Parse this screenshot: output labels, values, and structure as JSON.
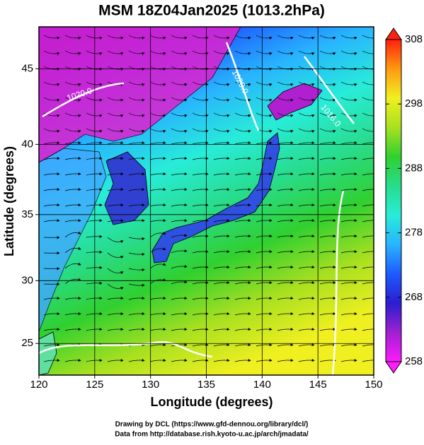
{
  "chart_data": {
    "type": "map",
    "title": "MSM 18Z04Jan2025 (1013.2hPa)",
    "x_label": "Longitude (degrees)",
    "y_label": "Latitude  (degrees)",
    "xlim": [
      120,
      150
    ],
    "xticks": [
      120,
      125,
      130,
      135,
      140,
      145,
      150
    ],
    "ylim": [
      22.4,
      47.6
    ],
    "yticks": [
      25,
      30,
      35,
      40,
      45
    ],
    "y_scale": "mercator",
    "grid": true,
    "contour_labels": [
      "1020.0",
      "1020.0",
      "1016.0"
    ],
    "colorbar": {
      "range": [
        258,
        308
      ],
      "ticks": [
        258,
        268,
        278,
        288,
        298,
        308
      ],
      "colors": [
        "#ff1aff",
        "#a020d0",
        "#2a1ed0",
        "#1e5aff",
        "#28b4ff",
        "#28ecd8",
        "#28dc8c",
        "#30d030",
        "#a8e020",
        "#f0f020",
        "#ff9a10",
        "#ff2010"
      ]
    },
    "footer": [
      "Drawing by DCL (https://www.gfd-dennou.org/library/dcl/)",
      "Data from http://database.rish.kyoto-u.ac.jp/arch/jmadata/"
    ]
  }
}
